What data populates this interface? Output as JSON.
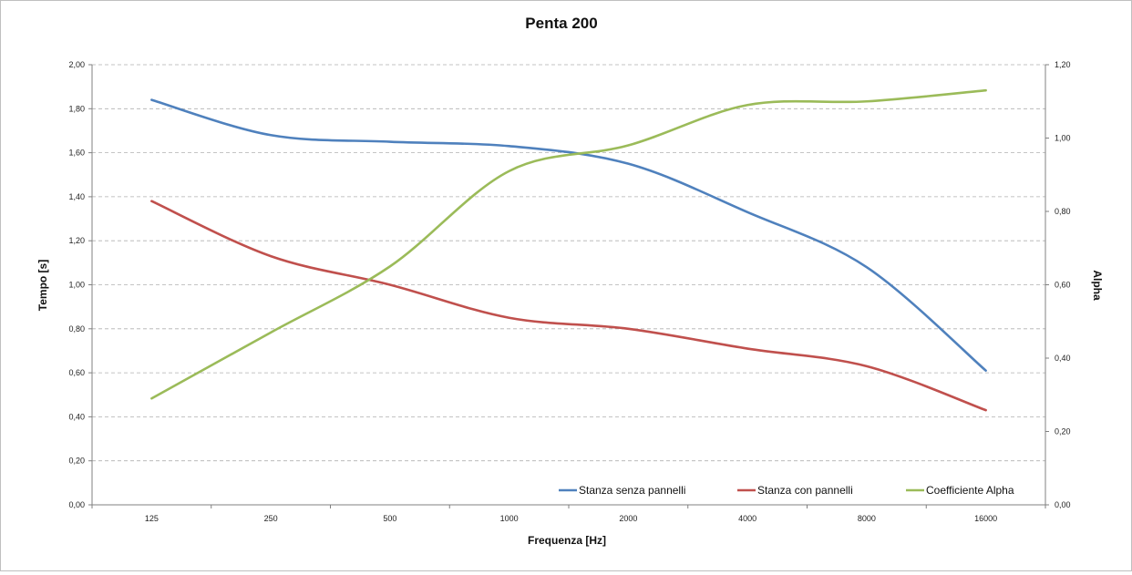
{
  "chart_data": {
    "type": "line",
    "title": "Penta 200",
    "xlabel": "Frequenza [Hz]",
    "ylabel": "Tempo [s]",
    "y2label": "Alpha",
    "categories": [
      "125",
      "250",
      "500",
      "1000",
      "2000",
      "4000",
      "8000",
      "16000"
    ],
    "ylim": [
      0,
      2
    ],
    "y2lim": [
      0,
      1.2
    ],
    "yticks": [
      "0,00",
      "0,20",
      "0,40",
      "0,60",
      "0,80",
      "1,00",
      "1,20",
      "1,40",
      "1,60",
      "1,80",
      "2,00"
    ],
    "y2ticks": [
      "0,00",
      "0,20",
      "0,40",
      "0,60",
      "0,80",
      "1,00",
      "1,20"
    ],
    "grid": true,
    "legend_position": "bottom-right",
    "series": [
      {
        "name": "Stanza senza pannelli",
        "axis": "left",
        "color": "#4f81bd",
        "values": [
          1.84,
          1.68,
          1.65,
          1.63,
          1.55,
          1.33,
          1.08,
          0.61
        ]
      },
      {
        "name": "Stanza con pannelli",
        "axis": "left",
        "color": "#c0504d",
        "values": [
          1.38,
          1.13,
          1.0,
          0.85,
          0.8,
          0.71,
          0.63,
          0.43
        ]
      },
      {
        "name": "Coefficiente Alpha",
        "axis": "right",
        "color": "#9bbb59",
        "values": [
          0.29,
          0.47,
          0.65,
          0.91,
          0.98,
          1.09,
          1.1,
          1.13
        ]
      }
    ]
  }
}
